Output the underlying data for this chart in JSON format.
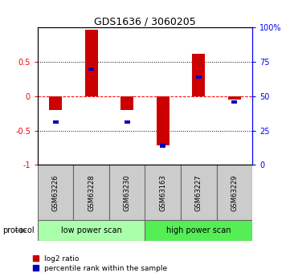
{
  "title": "GDS1636 / 3060205",
  "samples": [
    "GSM63226",
    "GSM63228",
    "GSM63230",
    "GSM63163",
    "GSM63227",
    "GSM63229"
  ],
  "log2_ratio": [
    -0.2,
    0.97,
    -0.2,
    -0.72,
    0.62,
    -0.05
  ],
  "percentile_rank": [
    31,
    70,
    31,
    14,
    64,
    46
  ],
  "groups": [
    {
      "name": "low power scan",
      "indices": [
        0,
        1,
        2
      ],
      "color": "#aaffaa"
    },
    {
      "name": "high power scan",
      "indices": [
        3,
        4,
        5
      ],
      "color": "#55ee55"
    }
  ],
  "group_label": "protocol",
  "bar_color_red": "#cc0000",
  "bar_color_blue": "#0000bb",
  "ylim": [
    -1.0,
    1.0
  ],
  "yticks_left": [
    -1.0,
    -0.5,
    0.0,
    0.5
  ],
  "ytick_labels_left": [
    "-1",
    "-0.5",
    "0",
    "0.5"
  ],
  "yticks_right": [
    0,
    25,
    50,
    75,
    100
  ],
  "ytick_labels_right": [
    "0",
    "25",
    "50",
    "75",
    "100%"
  ],
  "background_color": "#ffffff",
  "legend_red_label": "log2 ratio",
  "legend_blue_label": "percentile rank within the sample",
  "red_bar_width": 0.35,
  "blue_bar_width": 0.15
}
